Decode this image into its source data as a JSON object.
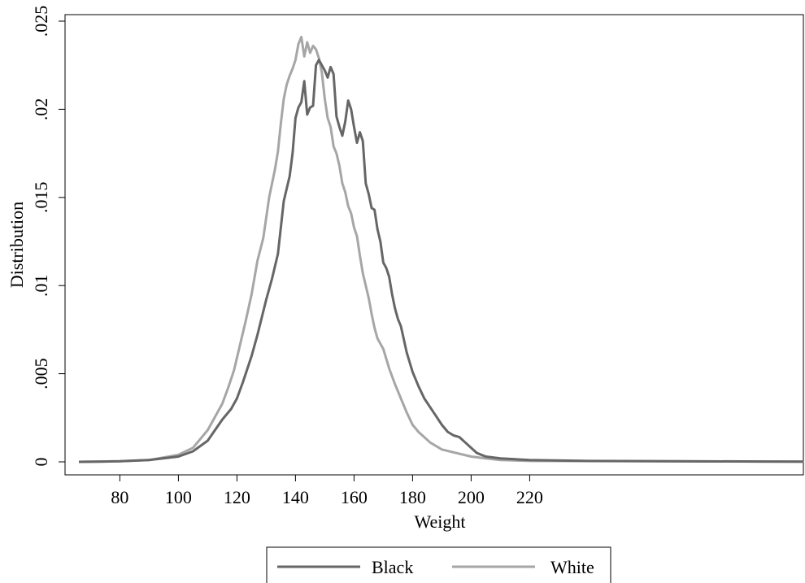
{
  "chart_data": {
    "type": "line",
    "title": "",
    "xlabel": "Weight",
    "ylabel": "Distribution",
    "xlim": [
      62,
      990
    ],
    "ylim": [
      0,
      0.025
    ],
    "x_ticks": [
      80,
      100,
      120,
      140,
      160,
      180,
      200,
      220
    ],
    "x_tick_labels": [
      "80",
      "100",
      "120",
      "140",
      "160",
      "180",
      "200",
      "220"
    ],
    "y_ticks": [
      0,
      0.005,
      0.01,
      0.015,
      0.02,
      0.025
    ],
    "y_tick_labels": [
      "0",
      ".005",
      ".01",
      ".015",
      ".02",
      ".025"
    ],
    "grid": false,
    "legend_position": "bottom",
    "series": [
      {
        "name": "Black",
        "color": "#666666",
        "points": [
          [
            66,
            0
          ],
          [
            80,
            3e-05
          ],
          [
            90,
            0.0001
          ],
          [
            100,
            0.0003
          ],
          [
            105,
            0.0006
          ],
          [
            110,
            0.0012
          ],
          [
            115,
            0.0024
          ],
          [
            118,
            0.003
          ],
          [
            120,
            0.0036
          ],
          [
            122,
            0.0045
          ],
          [
            125,
            0.006
          ],
          [
            127,
            0.0072
          ],
          [
            130,
            0.0092
          ],
          [
            132,
            0.0104
          ],
          [
            134,
            0.0118
          ],
          [
            136,
            0.0148
          ],
          [
            138,
            0.0162
          ],
          [
            139,
            0.0175
          ],
          [
            140,
            0.0195
          ],
          [
            141,
            0.0201
          ],
          [
            142,
            0.0204
          ],
          [
            143,
            0.0216
          ],
          [
            144,
            0.0197
          ],
          [
            145,
            0.0201
          ],
          [
            146,
            0.0202
          ],
          [
            147,
            0.0225
          ],
          [
            148,
            0.0228
          ],
          [
            149,
            0.0225
          ],
          [
            150,
            0.0222
          ],
          [
            151,
            0.0218
          ],
          [
            152,
            0.0224
          ],
          [
            153,
            0.022
          ],
          [
            154,
            0.0196
          ],
          [
            155,
            0.019
          ],
          [
            156,
            0.0185
          ],
          [
            157,
            0.0193
          ],
          [
            158,
            0.0205
          ],
          [
            159,
            0.02
          ],
          [
            160,
            0.019
          ],
          [
            161,
            0.0181
          ],
          [
            162,
            0.0187
          ],
          [
            163,
            0.0182
          ],
          [
            164,
            0.0158
          ],
          [
            165,
            0.0152
          ],
          [
            166,
            0.0144
          ],
          [
            167,
            0.0143
          ],
          [
            168,
            0.0132
          ],
          [
            169,
            0.0125
          ],
          [
            170,
            0.0113
          ],
          [
            171,
            0.011
          ],
          [
            172,
            0.0105
          ],
          [
            173,
            0.0095
          ],
          [
            174,
            0.0087
          ],
          [
            175,
            0.0081
          ],
          [
            176,
            0.0077
          ],
          [
            178,
            0.0062
          ],
          [
            180,
            0.0051
          ],
          [
            182,
            0.0043
          ],
          [
            184,
            0.0036
          ],
          [
            186,
            0.0031
          ],
          [
            188,
            0.0026
          ],
          [
            190,
            0.0021
          ],
          [
            192,
            0.0017
          ],
          [
            194,
            0.0015
          ],
          [
            196,
            0.0014
          ],
          [
            198,
            0.0011
          ],
          [
            200,
            0.0008
          ],
          [
            202,
            0.0005
          ],
          [
            205,
            0.0003
          ],
          [
            210,
            0.0002
          ],
          [
            220,
            0.0001
          ],
          [
            240,
            5e-05
          ],
          [
            300,
            2e-05
          ],
          [
            400,
            1e-05
          ],
          [
            600,
            0
          ],
          [
            800,
            0
          ],
          [
            990,
            0
          ]
        ]
      },
      {
        "name": "White",
        "color": "#a6a6a6",
        "points": [
          [
            66,
            0
          ],
          [
            80,
            3e-05
          ],
          [
            90,
            0.0001
          ],
          [
            100,
            0.0004
          ],
          [
            105,
            0.0008
          ],
          [
            110,
            0.0018
          ],
          [
            113,
            0.0027
          ],
          [
            115,
            0.0033
          ],
          [
            117,
            0.0042
          ],
          [
            119,
            0.0052
          ],
          [
            121,
            0.0066
          ],
          [
            123,
            0.008
          ],
          [
            125,
            0.0095
          ],
          [
            127,
            0.0114
          ],
          [
            129,
            0.0127
          ],
          [
            131,
            0.015
          ],
          [
            133,
            0.0166
          ],
          [
            134,
            0.0176
          ],
          [
            135,
            0.0192
          ],
          [
            136,
            0.0206
          ],
          [
            137,
            0.0214
          ],
          [
            138,
            0.0219
          ],
          [
            139,
            0.0223
          ],
          [
            140,
            0.0228
          ],
          [
            141,
            0.0237
          ],
          [
            142,
            0.0241
          ],
          [
            143,
            0.023
          ],
          [
            144,
            0.0238
          ],
          [
            145,
            0.0232
          ],
          [
            146,
            0.0236
          ],
          [
            147,
            0.0234
          ],
          [
            148,
            0.0229
          ],
          [
            149,
            0.0221
          ],
          [
            150,
            0.0206
          ],
          [
            151,
            0.0195
          ],
          [
            152,
            0.019
          ],
          [
            153,
            0.0179
          ],
          [
            154,
            0.0175
          ],
          [
            155,
            0.0168
          ],
          [
            156,
            0.0158
          ],
          [
            157,
            0.0153
          ],
          [
            158,
            0.0145
          ],
          [
            159,
            0.0141
          ],
          [
            160,
            0.0133
          ],
          [
            161,
            0.0128
          ],
          [
            162,
            0.0117
          ],
          [
            163,
            0.0107
          ],
          [
            164,
            0.01
          ],
          [
            165,
            0.0093
          ],
          [
            166,
            0.0084
          ],
          [
            167,
            0.0076
          ],
          [
            168,
            0.007
          ],
          [
            170,
            0.0064
          ],
          [
            172,
            0.0053
          ],
          [
            174,
            0.0044
          ],
          [
            176,
            0.0036
          ],
          [
            178,
            0.0028
          ],
          [
            180,
            0.0021
          ],
          [
            182,
            0.0017
          ],
          [
            184,
            0.0014
          ],
          [
            186,
            0.0011
          ],
          [
            188,
            0.0009
          ],
          [
            190,
            0.0007
          ],
          [
            195,
            0.0005
          ],
          [
            200,
            0.0003
          ],
          [
            205,
            0.0002
          ],
          [
            210,
            0.0001
          ],
          [
            220,
            5e-05
          ],
          [
            300,
            2e-05
          ],
          [
            400,
            1e-05
          ],
          [
            600,
            0
          ],
          [
            800,
            0
          ],
          [
            990,
            0
          ]
        ]
      }
    ]
  }
}
